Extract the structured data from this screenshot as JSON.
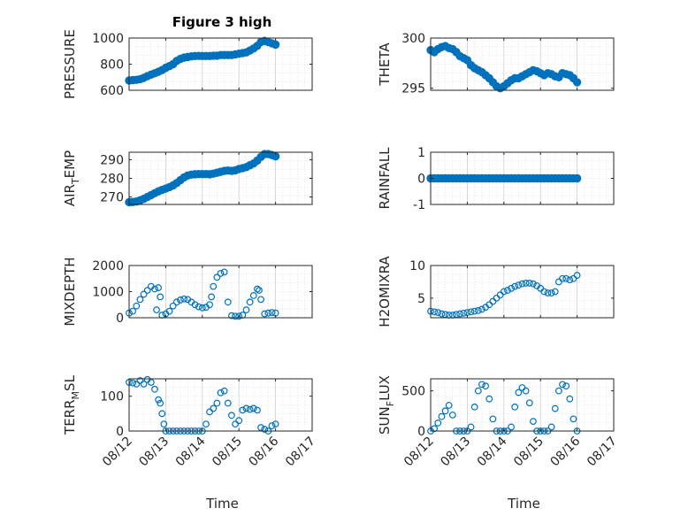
{
  "title": "Figure 3 high",
  "chart_data": [
    {
      "type": "scatter",
      "ylabel": "PRESSURE",
      "yticks": [
        "600",
        "800",
        "1000"
      ],
      "ylim": [
        600,
        1000
      ],
      "xlim": [
        0,
        5
      ],
      "x": [
        0.0,
        0.1,
        0.2,
        0.3,
        0.4,
        0.5,
        0.6,
        0.7,
        0.8,
        0.9,
        1.0,
        1.1,
        1.2,
        1.3,
        1.4,
        1.5,
        1.6,
        1.7,
        1.8,
        1.9,
        2.0,
        2.1,
        2.2,
        2.3,
        2.4,
        2.5,
        2.6,
        2.7,
        2.8,
        2.9,
        3.0,
        3.1,
        3.2,
        3.3,
        3.4,
        3.5,
        3.6,
        3.7,
        3.8,
        3.9,
        4.0
      ],
      "y": [
        675,
        678,
        680,
        685,
        695,
        708,
        720,
        730,
        742,
        755,
        772,
        785,
        800,
        825,
        840,
        850,
        855,
        860,
        862,
        863,
        862,
        862,
        862,
        865,
        865,
        870,
        870,
        870,
        870,
        875,
        880,
        885,
        890,
        905,
        920,
        940,
        970,
        978,
        970,
        960,
        950
      ]
    },
    {
      "type": "scatter",
      "ylabel": "THETA",
      "yticks": [
        "295",
        "300"
      ],
      "ylim": [
        294.8,
        300
      ],
      "xlim": [
        0,
        5
      ],
      "x": [
        0.0,
        0.1,
        0.2,
        0.3,
        0.4,
        0.5,
        0.6,
        0.7,
        0.8,
        0.9,
        1.0,
        1.1,
        1.2,
        1.3,
        1.4,
        1.5,
        1.6,
        1.7,
        1.8,
        1.9,
        2.0,
        2.1,
        2.2,
        2.3,
        2.4,
        2.5,
        2.6,
        2.7,
        2.8,
        2.9,
        3.0,
        3.1,
        3.2,
        3.3,
        3.4,
        3.5,
        3.6,
        3.7,
        3.8,
        3.9,
        4.0
      ],
      "y": [
        298.8,
        298.6,
        298.9,
        299.1,
        299.2,
        299.0,
        298.9,
        298.6,
        298.2,
        298.0,
        297.8,
        297.3,
        297.0,
        296.8,
        296.6,
        296.3,
        296.0,
        295.6,
        295.2,
        295.0,
        295.2,
        295.5,
        295.8,
        296.0,
        296.0,
        296.2,
        296.4,
        296.6,
        296.8,
        296.7,
        296.5,
        296.3,
        296.5,
        296.4,
        296.2,
        296.1,
        296.5,
        296.4,
        296.3,
        296.0,
        295.6
      ]
    },
    {
      "type": "scatter",
      "ylabel": "AIR_TEMP",
      "ylabel_main": "AIR",
      "ylabel_sub": "T",
      "ylabel_rest": "EMP",
      "yticks": [
        "270",
        "280",
        "290"
      ],
      "ylim": [
        266,
        294
      ],
      "xlim": [
        0,
        5
      ],
      "x": [
        0.0,
        0.1,
        0.2,
        0.3,
        0.4,
        0.5,
        0.6,
        0.7,
        0.8,
        0.9,
        1.0,
        1.1,
        1.2,
        1.3,
        1.4,
        1.5,
        1.6,
        1.7,
        1.8,
        1.9,
        2.0,
        2.1,
        2.2,
        2.3,
        2.4,
        2.5,
        2.6,
        2.7,
        2.8,
        2.9,
        3.0,
        3.1,
        3.2,
        3.3,
        3.4,
        3.5,
        3.6,
        3.7,
        3.8,
        3.9,
        4.0
      ],
      "y": [
        267.2,
        267.3,
        267.6,
        268.2,
        269.0,
        270.0,
        271.0,
        272.0,
        273.0,
        273.8,
        274.5,
        275.3,
        276.2,
        277.5,
        279.0,
        280.5,
        281.5,
        282.0,
        282.2,
        282.3,
        282.3,
        282.3,
        282.2,
        282.5,
        283.0,
        283.5,
        284.0,
        284.2,
        284.0,
        284.3,
        285.0,
        285.5,
        286.0,
        287.0,
        288.0,
        289.5,
        291.5,
        293.0,
        293.0,
        292.5,
        291.8
      ]
    },
    {
      "type": "scatter",
      "ylabel": "RAINFALL",
      "yticks": [
        "-1",
        "0",
        "1"
      ],
      "ylim": [
        -1,
        1
      ],
      "xlim": [
        0,
        5
      ],
      "x": [
        0.0,
        0.1,
        0.2,
        0.3,
        0.4,
        0.5,
        0.6,
        0.7,
        0.8,
        0.9,
        1.0,
        1.1,
        1.2,
        1.3,
        1.4,
        1.5,
        1.6,
        1.7,
        1.8,
        1.9,
        2.0,
        2.1,
        2.2,
        2.3,
        2.4,
        2.5,
        2.6,
        2.7,
        2.8,
        2.9,
        3.0,
        3.1,
        3.2,
        3.3,
        3.4,
        3.5,
        3.6,
        3.7,
        3.8,
        3.9,
        4.0
      ],
      "y": [
        0,
        0,
        0,
        0,
        0,
        0,
        0,
        0,
        0,
        0,
        0,
        0,
        0,
        0,
        0,
        0,
        0,
        0,
        0,
        0,
        0,
        0,
        0,
        0,
        0,
        0,
        0,
        0,
        0,
        0,
        0,
        0,
        0,
        0,
        0,
        0,
        0,
        0,
        0,
        0,
        0
      ]
    },
    {
      "type": "scatter",
      "ylabel": "MIXDEPTH",
      "yticks": [
        "0",
        "1000",
        "2000"
      ],
      "ylim": [
        0,
        2000
      ],
      "xlim": [
        0,
        5
      ],
      "x": [
        0.0,
        0.1,
        0.2,
        0.3,
        0.4,
        0.5,
        0.6,
        0.7,
        0.75,
        0.8,
        0.85,
        0.9,
        1.0,
        1.1,
        1.2,
        1.3,
        1.4,
        1.5,
        1.6,
        1.7,
        1.8,
        1.9,
        2.0,
        2.1,
        2.2,
        2.25,
        2.3,
        2.4,
        2.5,
        2.6,
        2.7,
        2.8,
        2.9,
        3.0,
        3.1,
        3.2,
        3.3,
        3.4,
        3.5,
        3.55,
        3.6,
        3.7,
        3.8,
        3.9,
        4.0
      ],
      "y": [
        180,
        250,
        450,
        700,
        900,
        1050,
        1200,
        1100,
        300,
        1150,
        800,
        100,
        150,
        250,
        450,
        600,
        680,
        720,
        700,
        600,
        500,
        420,
        380,
        400,
        500,
        800,
        1200,
        1550,
        1700,
        1750,
        600,
        80,
        60,
        60,
        100,
        300,
        600,
        850,
        1100,
        1050,
        700,
        150,
        180,
        200,
        180
      ]
    },
    {
      "type": "scatter",
      "ylabel": "H2OMIXRA",
      "yticks": [
        "5",
        "10"
      ],
      "ylim": [
        2,
        10
      ],
      "xlim": [
        0,
        5
      ],
      "x": [
        0.0,
        0.1,
        0.2,
        0.3,
        0.4,
        0.5,
        0.6,
        0.7,
        0.8,
        0.9,
        1.0,
        1.1,
        1.2,
        1.3,
        1.4,
        1.5,
        1.6,
        1.7,
        1.8,
        1.9,
        2.0,
        2.1,
        2.2,
        2.3,
        2.4,
        2.5,
        2.6,
        2.7,
        2.8,
        2.9,
        3.0,
        3.1,
        3.2,
        3.3,
        3.4,
        3.5,
        3.6,
        3.7,
        3.8,
        3.9,
        4.0
      ],
      "y": [
        3.0,
        2.9,
        2.8,
        2.6,
        2.5,
        2.4,
        2.4,
        2.5,
        2.6,
        2.7,
        2.8,
        2.9,
        3.0,
        3.1,
        3.3,
        3.6,
        4.0,
        4.5,
        5.0,
        5.5,
        6.0,
        6.2,
        6.5,
        6.8,
        7.0,
        7.2,
        7.3,
        7.3,
        7.2,
        6.9,
        6.5,
        6.0,
        5.8,
        5.8,
        6.0,
        7.5,
        8.0,
        8.0,
        7.8,
        8.0,
        8.5
      ]
    },
    {
      "type": "scatter",
      "ylabel": "TERR_MSL",
      "ylabel_main": "TERR",
      "ylabel_sub": "M",
      "ylabel_rest": "SL",
      "yticks": [
        "0",
        "100"
      ],
      "ylim": [
        0,
        150
      ],
      "xlim": [
        0,
        5
      ],
      "x": [
        0.0,
        0.1,
        0.2,
        0.3,
        0.4,
        0.5,
        0.6,
        0.7,
        0.8,
        0.85,
        0.9,
        0.95,
        1.0,
        1.1,
        1.2,
        1.3,
        1.4,
        1.5,
        1.6,
        1.7,
        1.8,
        1.9,
        2.0,
        2.1,
        2.2,
        2.3,
        2.4,
        2.5,
        2.6,
        2.7,
        2.8,
        2.9,
        3.0,
        3.1,
        3.2,
        3.3,
        3.4,
        3.5,
        3.6,
        3.7,
        3.8,
        3.9,
        4.0
      ],
      "y": [
        140,
        138,
        135,
        145,
        135,
        148,
        140,
        120,
        90,
        80,
        50,
        20,
        0,
        0,
        0,
        0,
        0,
        0,
        0,
        0,
        0,
        0,
        0,
        20,
        55,
        65,
        80,
        110,
        115,
        80,
        45,
        20,
        30,
        60,
        65,
        62,
        65,
        60,
        10,
        5,
        0,
        15,
        20
      ]
    },
    {
      "type": "scatter",
      "ylabel": "SUN_FLUX",
      "ylabel_main": "SUN",
      "ylabel_sub": "F",
      "ylabel_rest": "LUX",
      "yticks": [
        "0",
        "500"
      ],
      "ylim": [
        0,
        650
      ],
      "xlim": [
        0,
        5
      ],
      "x": [
        0.0,
        0.1,
        0.2,
        0.3,
        0.4,
        0.5,
        0.6,
        0.7,
        0.8,
        0.9,
        1.0,
        1.1,
        1.2,
        1.3,
        1.4,
        1.5,
        1.6,
        1.7,
        1.8,
        1.9,
        2.0,
        2.1,
        2.2,
        2.3,
        2.4,
        2.5,
        2.6,
        2.7,
        2.8,
        2.9,
        3.0,
        3.1,
        3.2,
        3.3,
        3.4,
        3.5,
        3.6,
        3.7,
        3.8,
        3.9,
        4.0
      ],
      "y": [
        0,
        30,
        100,
        180,
        250,
        320,
        200,
        0,
        0,
        0,
        0,
        50,
        300,
        500,
        580,
        560,
        400,
        150,
        0,
        0,
        0,
        0,
        50,
        300,
        480,
        540,
        500,
        350,
        120,
        0,
        0,
        0,
        0,
        50,
        280,
        500,
        580,
        560,
        400,
        150,
        0
      ]
    }
  ],
  "xaxis": {
    "xlabel": "Time",
    "ticks": [
      "08/12",
      "08/13",
      "08/14",
      "08/15",
      "08/16",
      "08/17"
    ]
  },
  "colors": {
    "marker": "#0072BD",
    "grid": "#d9d9d9",
    "axis": "#262626"
  }
}
